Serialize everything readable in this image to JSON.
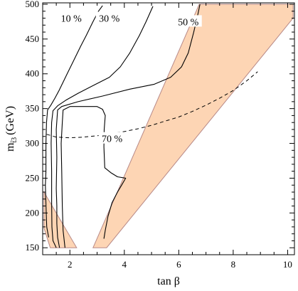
{
  "chart_data": {
    "type": "contour",
    "xlabel": "tan β",
    "ylabel_main": "m",
    "ylabel_sub": "t̃3",
    "ylabel_unit": "(GeV)",
    "xlim": [
      1,
      10.25
    ],
    "ylim": [
      140,
      502
    ],
    "xticks": [
      2,
      4,
      6,
      8,
      10
    ],
    "yticks": [
      150,
      200,
      250,
      300,
      350,
      400,
      450,
      500
    ],
    "colors": {
      "region": "#fdd5b4",
      "region_edge": "#b88a88",
      "line": "#000000",
      "frame": "#000000"
    },
    "shaded_regions": [
      {
        "name": "region-left",
        "points": [
          [
            1.05,
            230
          ],
          [
            2.25,
            150
          ],
          [
            1.28,
            150
          ],
          [
            1.05,
            178
          ]
        ]
      },
      {
        "name": "region-wedge",
        "points": [
          [
            2.85,
            150
          ],
          [
            6.75,
            500
          ],
          [
            10.2,
            500
          ],
          [
            10.2,
            480
          ],
          [
            3.35,
            150
          ]
        ]
      }
    ],
    "contours": [
      {
        "label": "10 %",
        "points": [
          [
            1.22,
            165
          ],
          [
            1.15,
            180
          ],
          [
            1.13,
            200
          ],
          [
            1.1,
            240
          ],
          [
            1.12,
            260
          ],
          [
            1.12,
            280
          ],
          [
            1.12,
            300
          ],
          [
            1.14,
            330
          ],
          [
            1.18,
            348
          ],
          [
            1.3,
            355
          ],
          [
            1.45,
            365
          ],
          [
            1.6,
            376
          ],
          [
            1.9,
            400
          ],
          [
            2.15,
            420
          ],
          [
            2.4,
            440
          ],
          [
            2.6,
            455
          ],
          [
            2.85,
            475
          ],
          [
            3.05,
            490
          ],
          [
            3.2,
            498
          ]
        ]
      },
      {
        "label": "30 %",
        "points": [
          [
            1.5,
            150
          ],
          [
            1.38,
            160
          ],
          [
            1.34,
            180
          ],
          [
            1.33,
            215
          ],
          [
            1.33,
            260
          ],
          [
            1.31,
            300
          ],
          [
            1.33,
            330
          ],
          [
            1.38,
            347
          ],
          [
            1.55,
            354
          ],
          [
            1.85,
            362
          ],
          [
            2.3,
            372
          ],
          [
            2.95,
            385
          ],
          [
            3.45,
            395
          ],
          [
            3.85,
            410
          ],
          [
            4.2,
            430
          ],
          [
            4.55,
            455
          ],
          [
            4.8,
            475
          ],
          [
            5.05,
            497
          ]
        ]
      },
      {
        "label": "50 %",
        "points": [
          [
            1.62,
            150
          ],
          [
            1.55,
            165
          ],
          [
            1.52,
            185
          ],
          [
            1.52,
            210
          ],
          [
            1.5,
            235
          ],
          [
            1.52,
            280
          ],
          [
            1.5,
            320
          ],
          [
            1.55,
            348
          ],
          [
            1.7,
            353
          ],
          [
            2.3,
            360
          ],
          [
            3.2,
            368
          ],
          [
            4.2,
            378
          ],
          [
            5.1,
            385
          ],
          [
            5.7,
            395
          ],
          [
            6.1,
            410
          ],
          [
            6.35,
            430
          ],
          [
            6.55,
            460
          ],
          [
            6.7,
            485
          ],
          [
            6.78,
            500
          ]
        ]
      },
      {
        "label": "70 %",
        "points": [
          [
            1.82,
            150
          ],
          [
            1.75,
            175
          ],
          [
            1.72,
            210
          ],
          [
            1.7,
            260
          ],
          [
            1.68,
            300
          ],
          [
            1.72,
            330
          ],
          [
            1.75,
            348
          ],
          [
            2,
            353
          ],
          [
            3,
            353
          ],
          [
            3.2,
            349
          ],
          [
            3.3,
            340
          ],
          [
            3.26,
            320
          ],
          [
            3.25,
            295
          ],
          [
            3.28,
            265
          ],
          [
            3.5,
            258
          ],
          [
            3.75,
            252
          ],
          [
            4.05,
            250
          ],
          [
            3.9,
            240
          ],
          [
            3.75,
            230
          ],
          [
            3.55,
            215
          ],
          [
            3.4,
            195
          ],
          [
            3.3,
            175
          ],
          [
            3.25,
            163
          ]
        ]
      }
    ],
    "dashed_curve": {
      "points": [
        [
          1.15,
          313
        ],
        [
          1.5,
          309
        ],
        [
          2,
          308
        ],
        [
          2.5,
          309
        ],
        [
          3,
          311
        ],
        [
          3.5,
          314
        ],
        [
          4,
          317
        ],
        [
          4.5,
          321
        ],
        [
          5,
          326
        ],
        [
          5.5,
          332
        ],
        [
          6,
          338
        ],
        [
          6.5,
          346
        ],
        [
          7,
          355
        ],
        [
          7.5,
          365
        ],
        [
          8,
          376
        ],
        [
          8.5,
          390
        ],
        [
          8.9,
          403
        ]
      ]
    },
    "labels": [
      {
        "text": "10 %",
        "x": 2.05,
        "y": 480
      },
      {
        "text": "30 %",
        "x": 3.45,
        "y": 480
      },
      {
        "text": "50 %",
        "x": 6.35,
        "y": 475
      },
      {
        "text": "70 %",
        "x": 3.55,
        "y": 307
      }
    ]
  }
}
